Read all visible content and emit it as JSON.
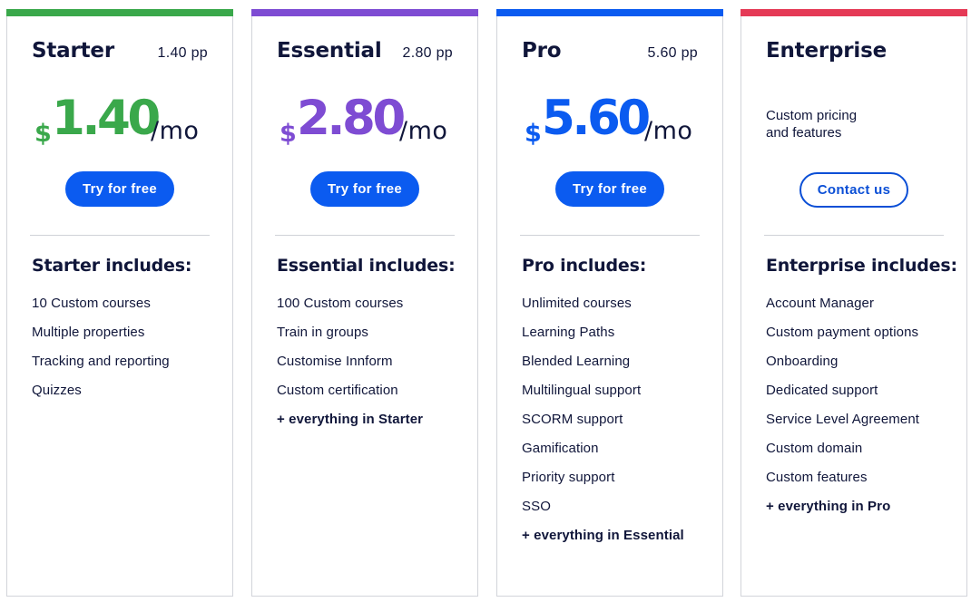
{
  "colors": {
    "green": "#3aa84b",
    "purple": "#7e4cd3",
    "blue": "#0b5bf0",
    "red": "#e53a56",
    "navy": "#10163a"
  },
  "plans": [
    {
      "name": "Starter",
      "pp": "1.40 pp",
      "currency": "$",
      "amount": "1.40",
      "per": "/mo",
      "button": "Try for free",
      "includes_title": "Starter includes:",
      "features": [
        "10 Custom courses",
        "Multiple properties",
        "Tracking and reporting",
        "Quizzes"
      ]
    },
    {
      "name": "Essential",
      "pp": "2.80 pp",
      "currency": "$",
      "amount": "2.80",
      "per": "/mo",
      "button": "Try for free",
      "includes_title": "Essential includes:",
      "features": [
        "100 Custom courses",
        "Train in groups",
        "Customise Innform",
        "Custom certification"
      ],
      "extra": "+ everything in Starter"
    },
    {
      "name": "Pro",
      "pp": "5.60 pp",
      "currency": "$",
      "amount": "5.60",
      "per": "/mo",
      "button": "Try for free",
      "includes_title": "Pro includes:",
      "features": [
        "Unlimited courses",
        "Learning Paths",
        "Blended Learning",
        "Multilingual support",
        "SCORM support",
        "Gamification",
        "Priority support",
        "SSO"
      ],
      "extra": "+ everything in Essential"
    },
    {
      "name": "Enterprise",
      "custom_line1": "Custom pricing",
      "custom_line2": "and features",
      "button": "Contact us",
      "includes_title": "Enterprise includes:",
      "features": [
        "Account Manager",
        "Custom payment options",
        "Onboarding",
        "Dedicated support",
        "Service Level Agreement",
        "Custom domain",
        "Custom features"
      ],
      "extra": "+ everything in Pro"
    }
  ]
}
